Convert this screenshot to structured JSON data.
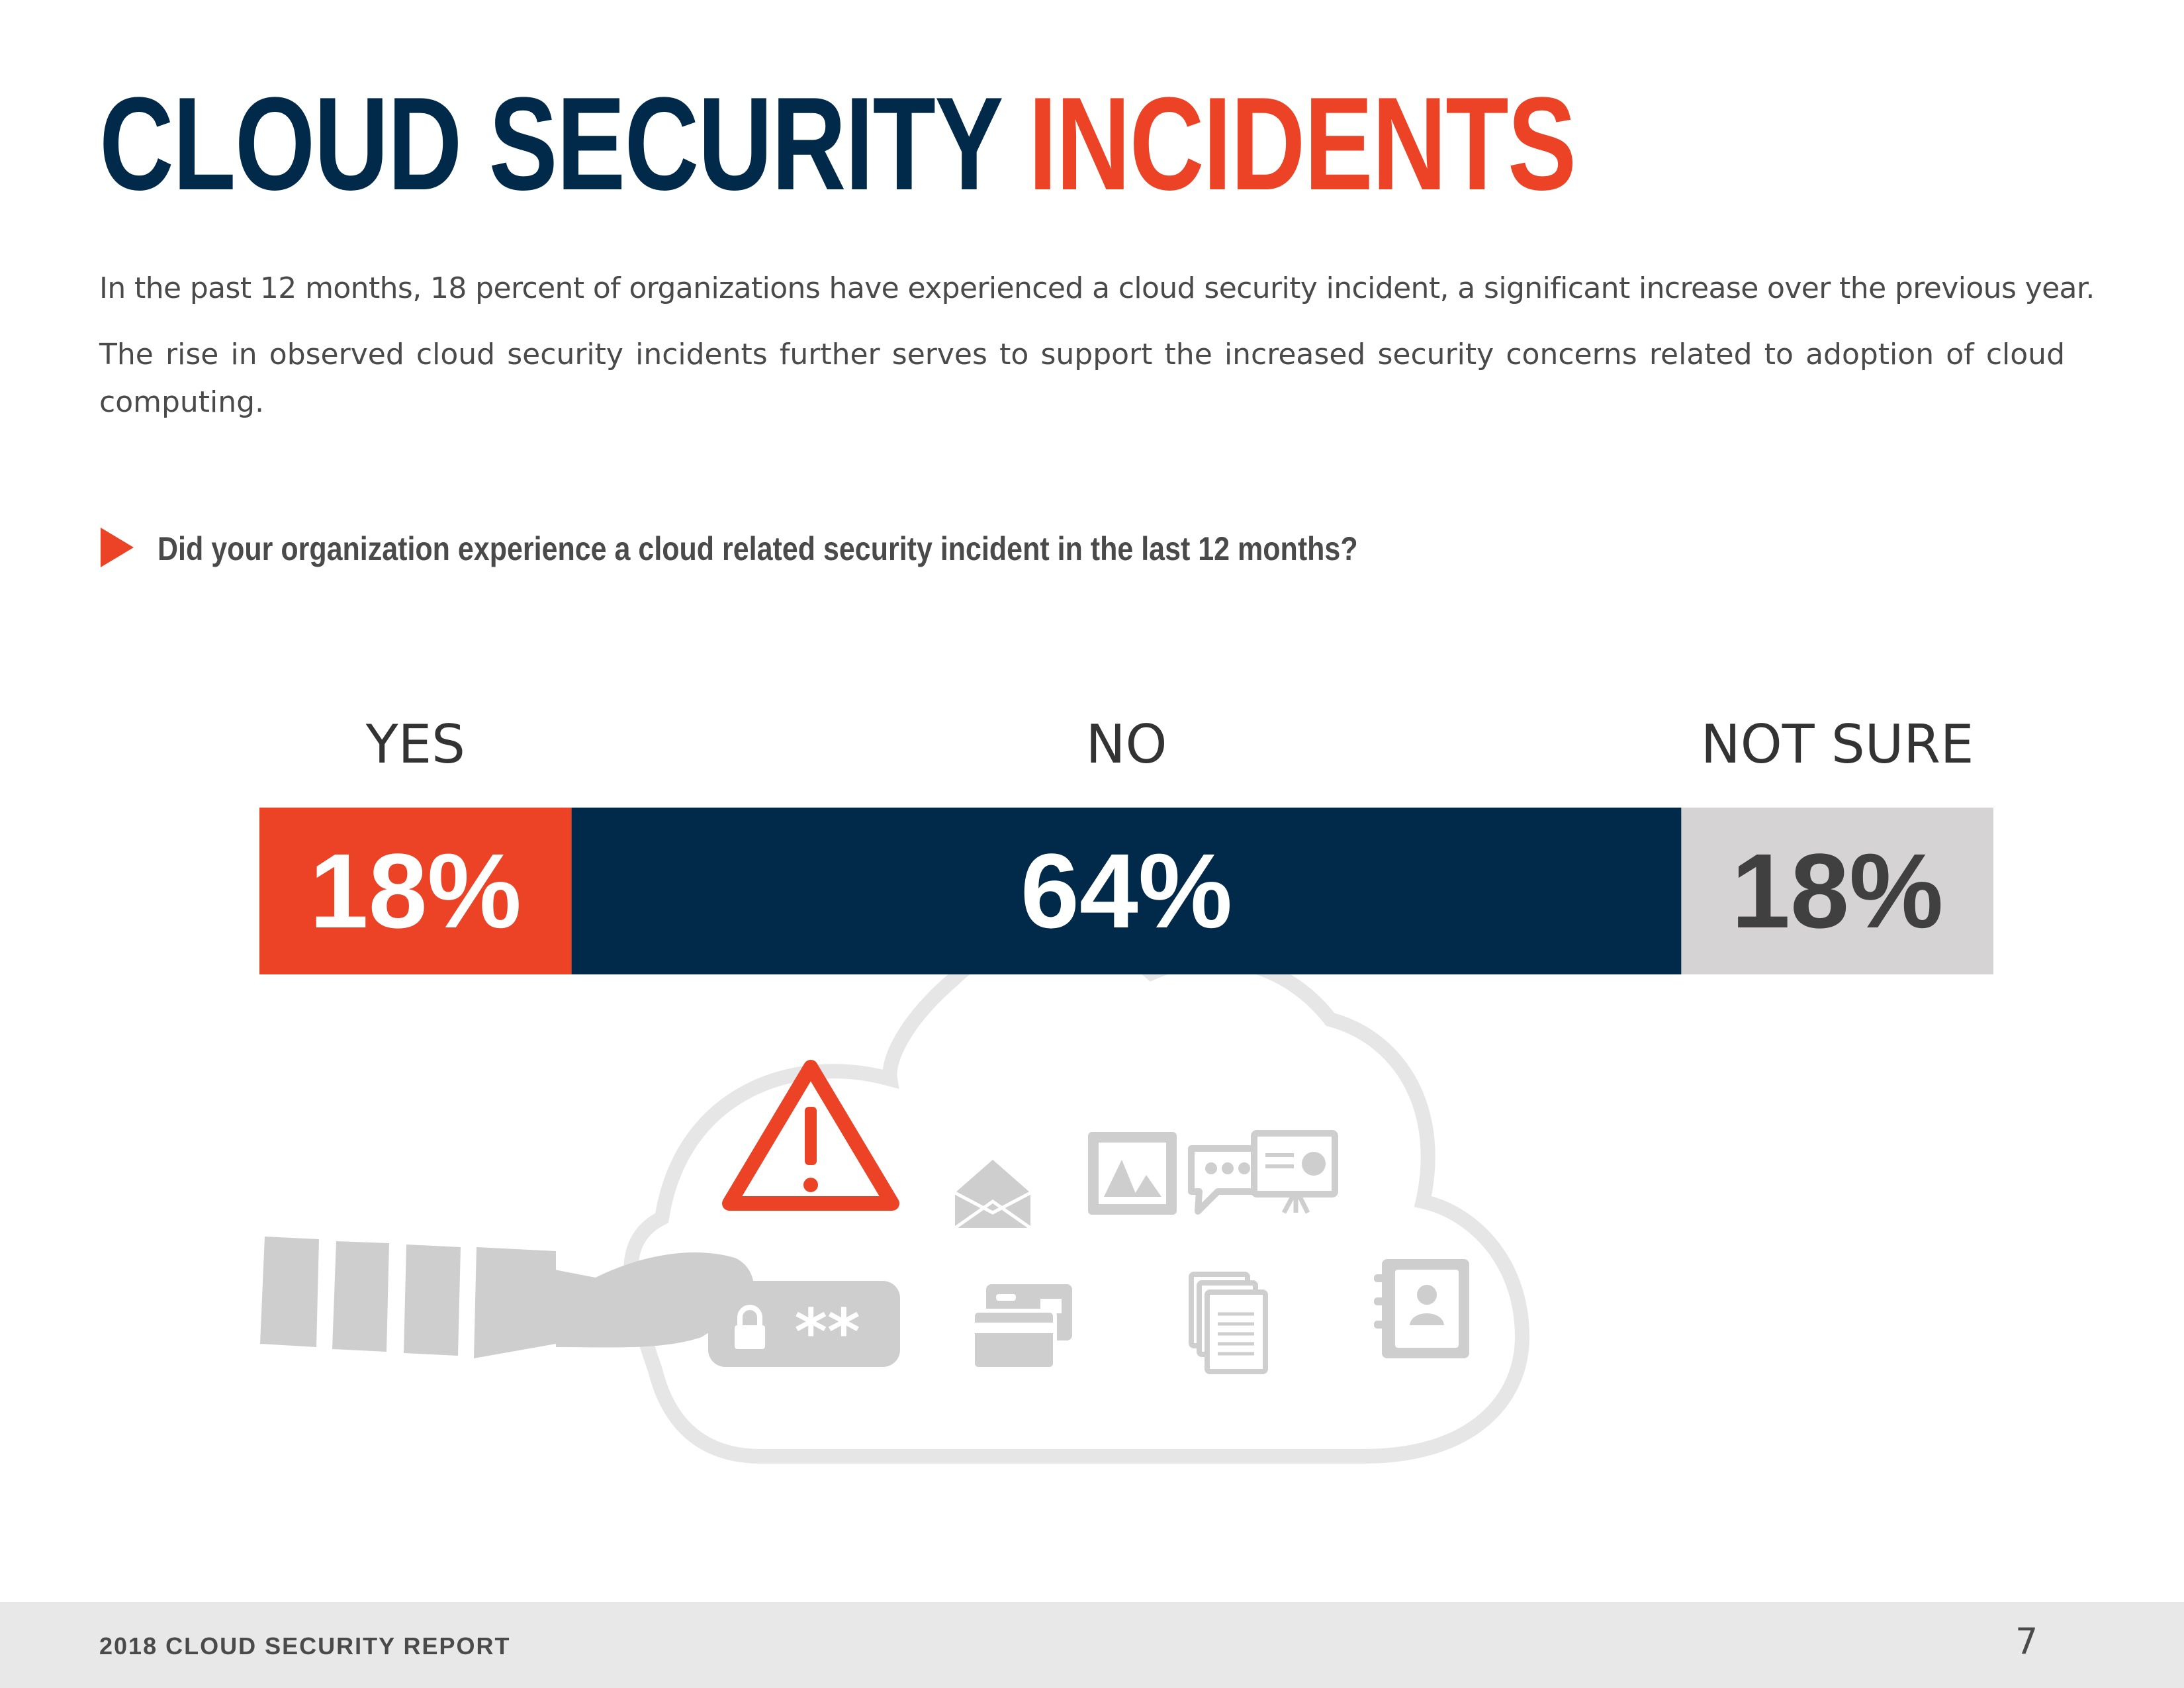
{
  "title": {
    "part1": "CLOUD SECURITY",
    "part2": "INCIDENTS"
  },
  "intro": {
    "p1": "In the past 12 months, 18 percent of organizations have experienced a cloud security incident, a significant increase over the previous year.",
    "p2": "The rise in observed cloud security incidents further serves to support the increased security concerns related to adoption of cloud computing."
  },
  "question": "Did your organization experience a cloud related security incident in the last 12 months?",
  "chart_data": {
    "type": "bar",
    "orientation": "horizontal-stacked-100",
    "categories": [
      "YES",
      "NO",
      "NOT SURE"
    ],
    "values": [
      18,
      64,
      18
    ],
    "value_labels": [
      "18%",
      "64%",
      "18%"
    ],
    "colors": [
      "#ec4326",
      "#00294a",
      "#d5d3d4"
    ],
    "label_colors": [
      "#ffffff",
      "#ffffff",
      "#404040"
    ],
    "title": "",
    "xlabel": "",
    "ylabel": ""
  },
  "illustration": {
    "icons": [
      "warning-icon",
      "envelope-icon",
      "image-icon",
      "chat-icon",
      "presentation-icon",
      "password-icon",
      "credit-card-icon",
      "documents-icon",
      "contacts-book-icon",
      "hand-icon"
    ],
    "password_text": "**"
  },
  "footer": {
    "title": "2018 CLOUD SECURITY REPORT",
    "page_number": "7"
  }
}
